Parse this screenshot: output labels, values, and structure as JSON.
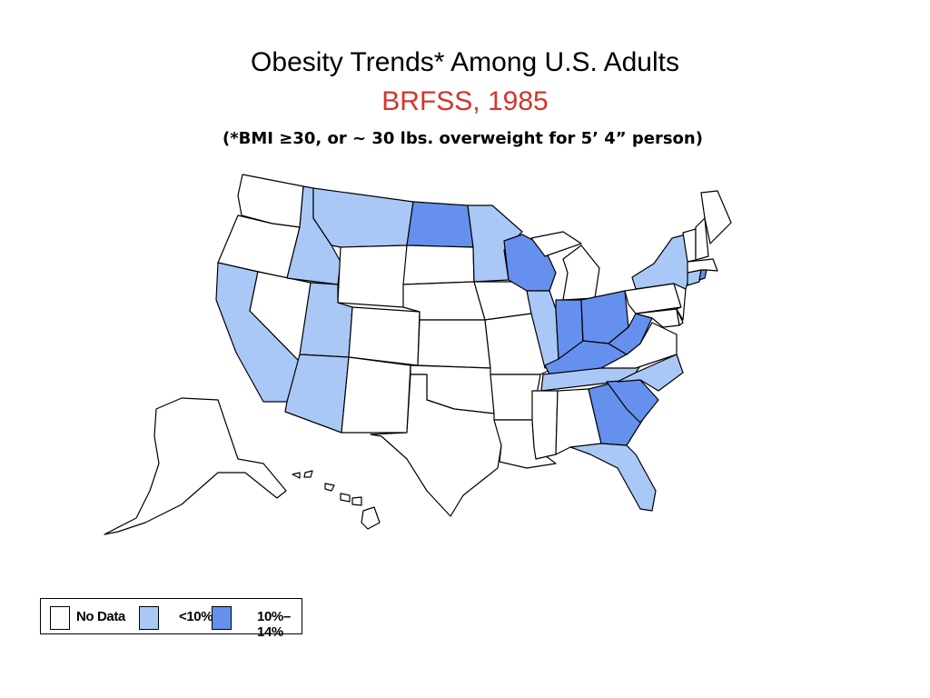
{
  "title": "Obesity Trends* Among U.S. Adults",
  "subtitle": "BRFSS, 1985",
  "note": "(*BMI ≥30, or ~ 30 lbs. overweight for 5’ 4” person)",
  "colors": {
    "title": "#000000",
    "subtitle": "#d5342b",
    "no_data": "#ffffff",
    "lt10": "#a9c8f6",
    "p10_14": "#6690ee"
  },
  "legend": [
    {
      "label": "No Data",
      "color": "#ffffff"
    },
    {
      "label": "<10%",
      "color": "#a9c8f6"
    },
    {
      "label": "10%–14%",
      "color": "#6690ee"
    }
  ]
}
